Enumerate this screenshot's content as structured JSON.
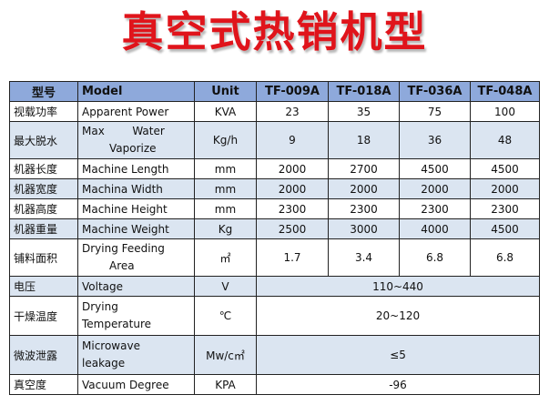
{
  "title": "真空式热销机型",
  "table": {
    "header": {
      "zh": "型号",
      "en": "Model",
      "unit": "Unit",
      "models": [
        "TF-009A",
        "TF-018A",
        "TF-036A",
        "TF-048A"
      ]
    },
    "rows": [
      {
        "zh": "视载功率",
        "en": "Apparent Power",
        "unit": "KVA",
        "values": [
          "23",
          "35",
          "75",
          "100"
        ]
      },
      {
        "zh": "最大脱水",
        "en_line1": "Max        Water",
        "en_line2": "Vaporize",
        "unit": "Kg/h",
        "values": [
          "9",
          "18",
          "36",
          "48"
        ]
      },
      {
        "zh": "机器长度",
        "en": "Machine Length",
        "unit": "mm",
        "values": [
          "2000",
          "2700",
          "4500",
          "4500"
        ]
      },
      {
        "zh": "机器宽度",
        "en": "Machina Width",
        "unit": "mm",
        "values": [
          "2000",
          "2000",
          "2000",
          "2000"
        ]
      },
      {
        "zh": "机器高度",
        "en": "Machine Height",
        "unit": "mm",
        "values": [
          "2300",
          "2300",
          "2300",
          "2300"
        ]
      },
      {
        "zh": "机器重量",
        "en": "Machine Weight",
        "unit": "Kg",
        "values": [
          "2500",
          "3000",
          "4000",
          "4500"
        ]
      },
      {
        "zh": "铺料面积",
        "en_line1": "Drying Feeding",
        "en_line2": "Area",
        "unit": "㎡",
        "values": [
          "1.7",
          "3.4",
          "6.8",
          "6.8"
        ]
      },
      {
        "zh": "电压",
        "en": "Voltage",
        "unit": "V",
        "value": "110~440"
      },
      {
        "zh": "干燥温度",
        "en_line1": "Drying",
        "en_line2": "Temperature",
        "unit": "℃",
        "value": "20~120"
      },
      {
        "zh": "微波泄露",
        "en_line1": "Microwave",
        "en_line2": "leakage",
        "unit": "Mw/c㎡",
        "value": "≤5"
      },
      {
        "zh": "真空度",
        "en": "Vacuum Degree",
        "unit": "KPA",
        "value": "-96"
      }
    ]
  }
}
